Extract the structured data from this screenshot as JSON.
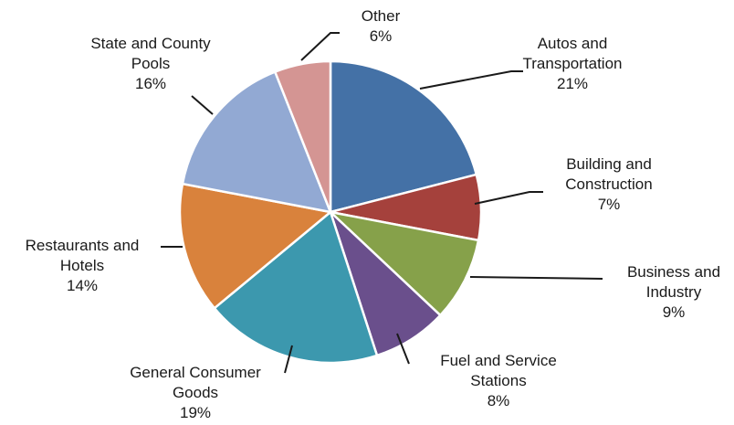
{
  "chart_data": {
    "type": "pie",
    "title": "",
    "unit": "%",
    "slices": [
      {
        "name": "Autos and Transportation",
        "lines": [
          "Autos and",
          "Transportation"
        ],
        "pct_label": "21%",
        "value": 21,
        "color": "#4471a6"
      },
      {
        "name": "Building and Construction",
        "lines": [
          "Building and",
          "Construction"
        ],
        "pct_label": "7%",
        "value": 7,
        "color": "#a5413c"
      },
      {
        "name": "Business and Industry",
        "lines": [
          "Business and",
          "Industry"
        ],
        "pct_label": "9%",
        "value": 9,
        "color": "#86a14a"
      },
      {
        "name": "Fuel and Service Stations",
        "lines": [
          "Fuel and Service",
          "Stations"
        ],
        "pct_label": "8%",
        "value": 8,
        "color": "#6a4f8c"
      },
      {
        "name": "General Consumer Goods",
        "lines": [
          "General Consumer",
          "Goods"
        ],
        "pct_label": "19%",
        "value": 19,
        "color": "#3c98ae"
      },
      {
        "name": "Restaurants and Hotels",
        "lines": [
          "Restaurants  and",
          "Hotels"
        ],
        "pct_label": "14%",
        "value": 14,
        "color": "#d9823c"
      },
      {
        "name": "State and County Pools",
        "lines": [
          "State  and  County",
          "Pools"
        ],
        "pct_label": "16%",
        "value": 16,
        "color": "#92a9d3"
      },
      {
        "name": "Other",
        "lines": [
          "Other"
        ],
        "pct_label": "6%",
        "value": 6,
        "color": "#d49593"
      }
    ]
  }
}
